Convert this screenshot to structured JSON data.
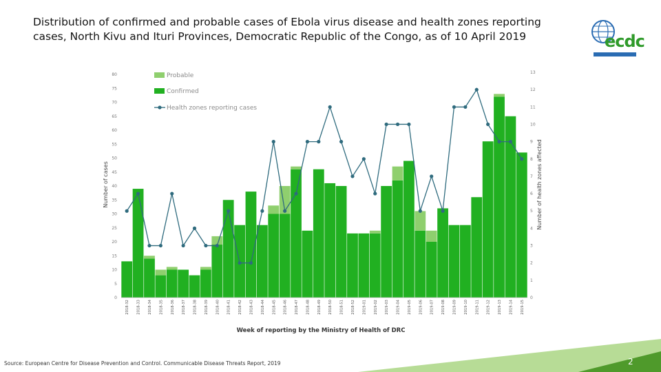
{
  "title": "Distribution of confirmed and probable cases of Ebola virus disease and health zones reporting cases, North Kivu and Ituri Provinces, Democratic Republic of the Congo, as of 10 April 2019",
  "source": "Source: European Centre for Disease Prevention and Control. Communicable Disease Threats Report, 2019",
  "page_number": "2",
  "logo": {
    "name": "ecdc",
    "icon": "globe-icon"
  },
  "colors": {
    "confirmed": "#21b021",
    "probable": "#8fcf6e",
    "line": "#2f6b7e",
    "accent": "#7cbf3f",
    "logo_blue": "#2a6cb3"
  },
  "chart_data": {
    "type": "bar",
    "title": "",
    "xlabel": "Week of reporting by the Ministry of Health of DRC",
    "ylabel": "Number of cases",
    "y2label": "Number of health zones affected",
    "ylim": [
      0,
      80
    ],
    "y2lim": [
      0,
      13
    ],
    "yticks": [
      0,
      5,
      10,
      15,
      20,
      25,
      30,
      35,
      40,
      45,
      50,
      55,
      60,
      65,
      70,
      75,
      80
    ],
    "y2ticks": [
      0,
      1,
      2,
      3,
      4,
      5,
      6,
      7,
      8,
      9,
      10,
      11,
      12,
      13
    ],
    "legend_position": "top-left",
    "stacked": true,
    "grid": false,
    "categories": [
      "2018-32",
      "2018-33",
      "2018-34",
      "2018-35",
      "2018-36",
      "2018-37",
      "2018-38",
      "2018-39",
      "2018-40",
      "2018-41",
      "2018-42",
      "2018-43",
      "2018-44",
      "2018-45",
      "2018-46",
      "2018-47",
      "2018-48",
      "2018-49",
      "2018-50",
      "2018-51",
      "2018-52",
      "2019-01",
      "2019-02",
      "2019-03",
      "2019-04",
      "2019-05",
      "2019-06",
      "2019-07",
      "2019-08",
      "2019-09",
      "2019-10",
      "2019-11",
      "2019-12",
      "2019-13",
      "2019-14",
      "2019-15"
    ],
    "series": [
      {
        "name": "Probable",
        "kind": "bar",
        "values": [
          0,
          0,
          1,
          2,
          1,
          0,
          0,
          1,
          3,
          0,
          0,
          0,
          0,
          3,
          10,
          1,
          0,
          0,
          0,
          0,
          0,
          0,
          1,
          0,
          5,
          0,
          7,
          4,
          0,
          0,
          0,
          0,
          0,
          1,
          0,
          0
        ]
      },
      {
        "name": "Confirmed",
        "kind": "bar",
        "values": [
          13,
          39,
          14,
          8,
          10,
          10,
          8,
          10,
          19,
          35,
          26,
          38,
          26,
          30,
          30,
          46,
          24,
          46,
          41,
          40,
          23,
          23,
          23,
          40,
          42,
          49,
          24,
          20,
          32,
          26,
          26,
          36,
          56,
          72,
          65,
          52
        ]
      },
      {
        "name": "Health zones reporting cases",
        "kind": "line",
        "axis": "right",
        "values": [
          5,
          6,
          3,
          3,
          6,
          3,
          4,
          3,
          3,
          5,
          2,
          2,
          5,
          9,
          5,
          6,
          9,
          9,
          11,
          9,
          7,
          8,
          6,
          10,
          10,
          10,
          5,
          7,
          5,
          11,
          11,
          12,
          10,
          9,
          9,
          8
        ]
      }
    ]
  }
}
